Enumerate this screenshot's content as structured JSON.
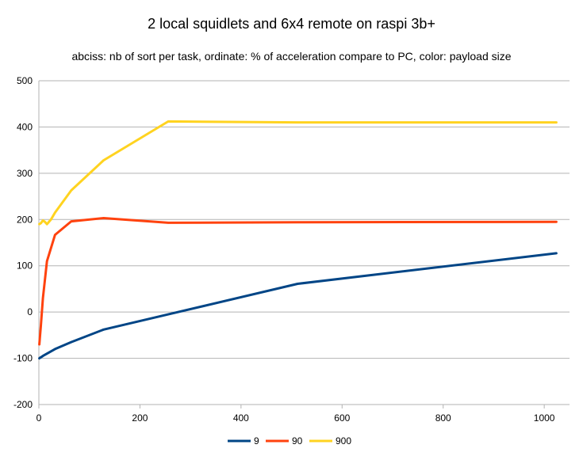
{
  "chart_data": {
    "type": "line",
    "title": "2 local squidlets and 6x4 remote on raspi 3b+",
    "subtitle": "abciss: nb of sort per task, ordinate: % of  acceleration compare to PC, color: payload size",
    "xlabel": "",
    "ylabel": "",
    "xlim": [
      0,
      1050
    ],
    "ylim": [
      -200,
      500
    ],
    "xticks": [
      "0",
      "200",
      "400",
      "600",
      "800",
      "1000"
    ],
    "xtick_values": [
      0,
      200,
      400,
      600,
      800,
      1000
    ],
    "yticks": [
      "-200",
      "-100",
      "0",
      "100",
      "200",
      "300",
      "400",
      "500"
    ],
    "ytick_values": [
      -200,
      -100,
      0,
      100,
      200,
      300,
      400,
      500
    ],
    "grid": "horizontal",
    "legend": "bottom",
    "series": [
      {
        "name": "9",
        "color": "#004586",
        "x": [
          1,
          2,
          4,
          8,
          16,
          32,
          64,
          128,
          256,
          512,
          1024
        ],
        "y": [
          -100,
          -99,
          -98,
          -95,
          -90,
          -80,
          -65,
          -38,
          -5,
          61,
          127
        ]
      },
      {
        "name": "90",
        "color": "#ff420e",
        "x": [
          1,
          2,
          4,
          8,
          16,
          32,
          64,
          128,
          256,
          512,
          1024
        ],
        "y": [
          -70,
          -55,
          -30,
          30,
          110,
          167,
          196,
          203,
          193,
          194,
          195
        ]
      },
      {
        "name": "900",
        "color": "#ffd320",
        "x": [
          1,
          4,
          8,
          12,
          16,
          24,
          32,
          64,
          128,
          256,
          512,
          1024
        ],
        "y": [
          190,
          192,
          198,
          195,
          190,
          200,
          215,
          263,
          328,
          412,
          410,
          410
        ]
      }
    ]
  }
}
